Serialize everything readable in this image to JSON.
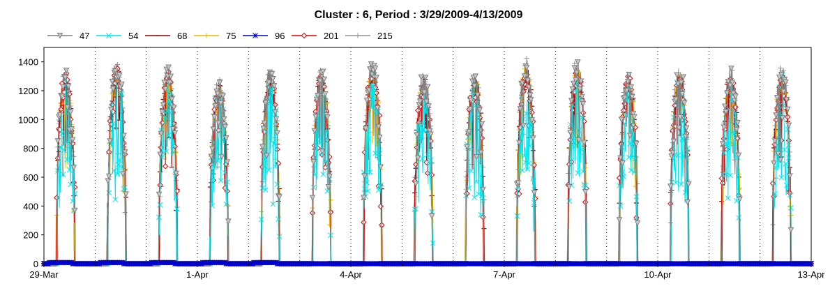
{
  "chart_data": {
    "type": "line",
    "title": "Cluster : 6, Period : 3/29/2009-4/13/2009",
    "xlabel": "",
    "ylabel": "",
    "x_range": [
      "2009-03-29",
      "2009-04-13"
    ],
    "ylim": [
      0,
      1500
    ],
    "y_ticks": [
      0,
      200,
      400,
      600,
      800,
      1000,
      1200,
      1400
    ],
    "x_ticks": [
      {
        "date": "2009-03-29",
        "label": "29-Mar"
      },
      {
        "date": "2009-04-01",
        "label": "1-Apr"
      },
      {
        "date": "2009-04-04",
        "label": "4-Apr"
      },
      {
        "date": "2009-04-07",
        "label": "7-Apr"
      },
      {
        "date": "2009-04-10",
        "label": "10-Apr"
      },
      {
        "date": "2009-04-13",
        "label": "13-Apr"
      }
    ],
    "grid": "dotted vertical at day boundaries",
    "legend_position": "top-left",
    "series": [
      {
        "name": "47",
        "color": "#808080",
        "marker": "triangle-down"
      },
      {
        "name": "54",
        "color": "#00e5ee",
        "marker": "x"
      },
      {
        "name": "68",
        "color": "#8b0000",
        "marker": "minus"
      },
      {
        "name": "75",
        "color": "#e6b800",
        "marker": "plus"
      },
      {
        "name": "96",
        "color": "#0000cd",
        "marker": "asterisk"
      },
      {
        "name": "201",
        "color": "#dd0000",
        "marker": "diamond"
      },
      {
        "name": "215",
        "color": "#909090",
        "marker": "plus"
      }
    ],
    "daily_peaks": [
      {
        "date": "2009-03-29",
        "peak": 1330
      },
      {
        "date": "2009-03-30",
        "peak": 1370
      },
      {
        "date": "2009-03-31",
        "peak": 1340
      },
      {
        "date": "2009-04-01",
        "peak": 1250
      },
      {
        "date": "2009-04-02",
        "peak": 1320
      },
      {
        "date": "2009-04-03",
        "peak": 1320
      },
      {
        "date": "2009-04-04",
        "peak": 1380
      },
      {
        "date": "2009-04-05",
        "peak": 1300
      },
      {
        "date": "2009-04-06",
        "peak": 1300
      },
      {
        "date": "2009-04-07",
        "peak": 1380
      },
      {
        "date": "2009-04-08",
        "peak": 1380
      },
      {
        "date": "2009-04-09",
        "peak": 1300
      },
      {
        "date": "2009-04-10",
        "peak": 1330
      },
      {
        "date": "2009-04-11",
        "peak": 1330
      },
      {
        "date": "2009-04-12",
        "peak": 1330
      }
    ],
    "series_96_active_days": [
      "2009-03-29",
      "2009-03-30",
      "2009-03-31",
      "2009-04-01",
      "2009-04-02"
    ]
  }
}
